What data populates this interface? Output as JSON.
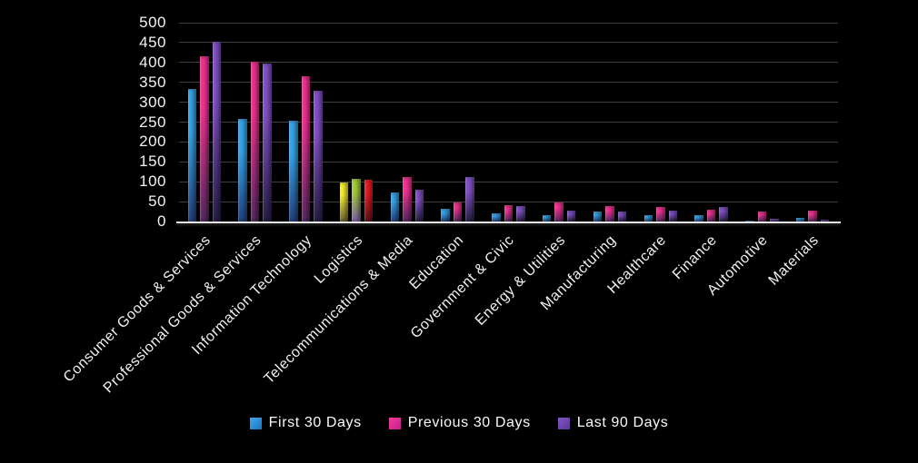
{
  "background_color": "#000000",
  "chart_data": {
    "type": "bar",
    "categories": [
      "Consumer Goods & Services",
      "Professional Goods & Services",
      "Information Technology",
      "Logistics",
      "Telecommunications & Media",
      "Education",
      "Government & Civic",
      "Energy & Utilities",
      "Manufacturing",
      "Healthcare",
      "Finance",
      "Automotive",
      "Materials"
    ],
    "series": [
      {
        "name": "First 30 Days",
        "values": [
          333,
          258,
          254,
          98,
          73,
          31,
          21,
          15,
          25,
          15,
          15,
          2,
          9
        ]
      },
      {
        "name": "Previous 30 Days",
        "values": [
          415,
          403,
          365,
          107,
          112,
          48,
          40,
          47,
          38,
          36,
          29,
          26,
          28
        ]
      },
      {
        "name": "Last 90 Days",
        "values": [
          453,
          397,
          328,
          104,
          80,
          111,
          39,
          27,
          26,
          27,
          36,
          7,
          5
        ]
      }
    ],
    "ylim": [
      0,
      500
    ],
    "yticks": [
      0,
      50,
      100,
      150,
      200,
      250,
      300,
      350,
      400,
      450,
      500
    ],
    "grid": "horizontal-only",
    "legend_position": "bottom",
    "category_label_rotation_deg": 45,
    "series_colors": [
      {
        "top": "#35a4e8",
        "bottom": "#22407f"
      },
      {
        "top": "#f23292",
        "bottom": "#54285f"
      },
      {
        "top": "#8251c4",
        "bottom": "#261e44"
      }
    ],
    "color_overrides": [
      {
        "category": "Logistics",
        "series": "First 30 Days",
        "top": "#f7ee2f",
        "bottom": "#6e6330"
      },
      {
        "category": "Logistics",
        "series": "Previous 30 Days",
        "top": "#a2cc39",
        "bottom": "#7b5ca5"
      },
      {
        "category": "Logistics",
        "series": "Last 90 Days",
        "top": "#ee1c25",
        "bottom": "#5c1019"
      }
    ],
    "gridline_color": "#3f3f3f",
    "axis_line_color": "#e8e8e8",
    "tick_label_color": "#f2f2f2"
  },
  "legend": {
    "items": [
      {
        "label": "First 30 Days",
        "swatch_top": "#3fa9f5",
        "swatch_bottom": "#1b75bb"
      },
      {
        "label": "Previous 30 Days",
        "swatch_top": "#f53a9b",
        "swatch_bottom": "#c2208a"
      },
      {
        "label": "Last 90 Days",
        "swatch_top": "#8455c8",
        "swatch_bottom": "#59388f"
      }
    ]
  }
}
